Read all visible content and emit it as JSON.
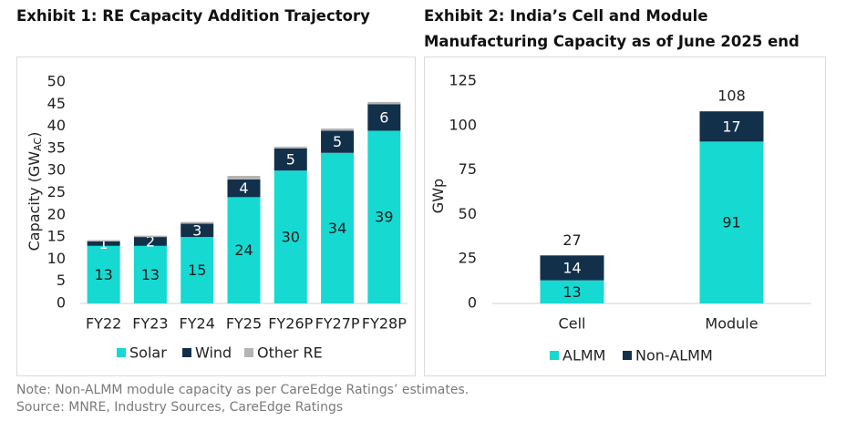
{
  "chart_data": [
    {
      "type": "bar",
      "stacked": true,
      "title": "Exhibit 1: RE Capacity Addition Trajectory",
      "y_label": "Capacity (GW",
      "y_label_sub": "AC",
      "y_label_end": ")",
      "categories": [
        "FY22",
        "FY23",
        "FY24",
        "FY25",
        "FY26P",
        "FY27P",
        "FY28P"
      ],
      "series": [
        {
          "name": "Solar",
          "color": "#16d9d2",
          "label_color": "#1a1a1a",
          "data_labels": true,
          "values": [
            13,
            13,
            15,
            24,
            30,
            34,
            39
          ]
        },
        {
          "name": "Wind",
          "color": "#13304a",
          "label_color": "#ffffff",
          "data_labels": true,
          "values": [
            1,
            2,
            3,
            4,
            5,
            5,
            6
          ]
        },
        {
          "name": "Other RE",
          "color": "#b3b3b3",
          "label_color": "#1a1a1a",
          "data_labels": false,
          "values": [
            0.3,
            0.3,
            0.4,
            0.8,
            0.4,
            0.5,
            0.5
          ]
        }
      ],
      "ylim": [
        0,
        50
      ],
      "yticks": [
        0,
        5,
        10,
        15,
        20,
        25,
        30,
        35,
        40,
        45,
        50
      ],
      "grid": false,
      "legend": "bottom"
    },
    {
      "type": "bar",
      "stacked": true,
      "title": "Exhibit 2: India’s Cell and Module Manufacturing Capacity as of June 2025 end",
      "y_label": "GWp",
      "categories": [
        "Cell",
        "Module"
      ],
      "series": [
        {
          "name": "ALMM",
          "color": "#16d9d2",
          "label_color": "#1a1a1a",
          "data_labels": true,
          "values": [
            13,
            91
          ]
        },
        {
          "name": "Non-ALMM",
          "color": "#13304a",
          "label_color": "#ffffff",
          "data_labels": true,
          "values": [
            14,
            17
          ]
        }
      ],
      "totals": [
        27,
        108
      ],
      "ylim": [
        0,
        125
      ],
      "yticks": [
        0,
        25,
        50,
        75,
        100,
        125
      ],
      "grid": false,
      "legend": "bottom"
    }
  ],
  "notes": [
    "Note: Non-ALMM module capacity as per CareEdge Ratings’ estimates.",
    "Source: MNRE, Industry Sources, CareEdge Ratings"
  ]
}
